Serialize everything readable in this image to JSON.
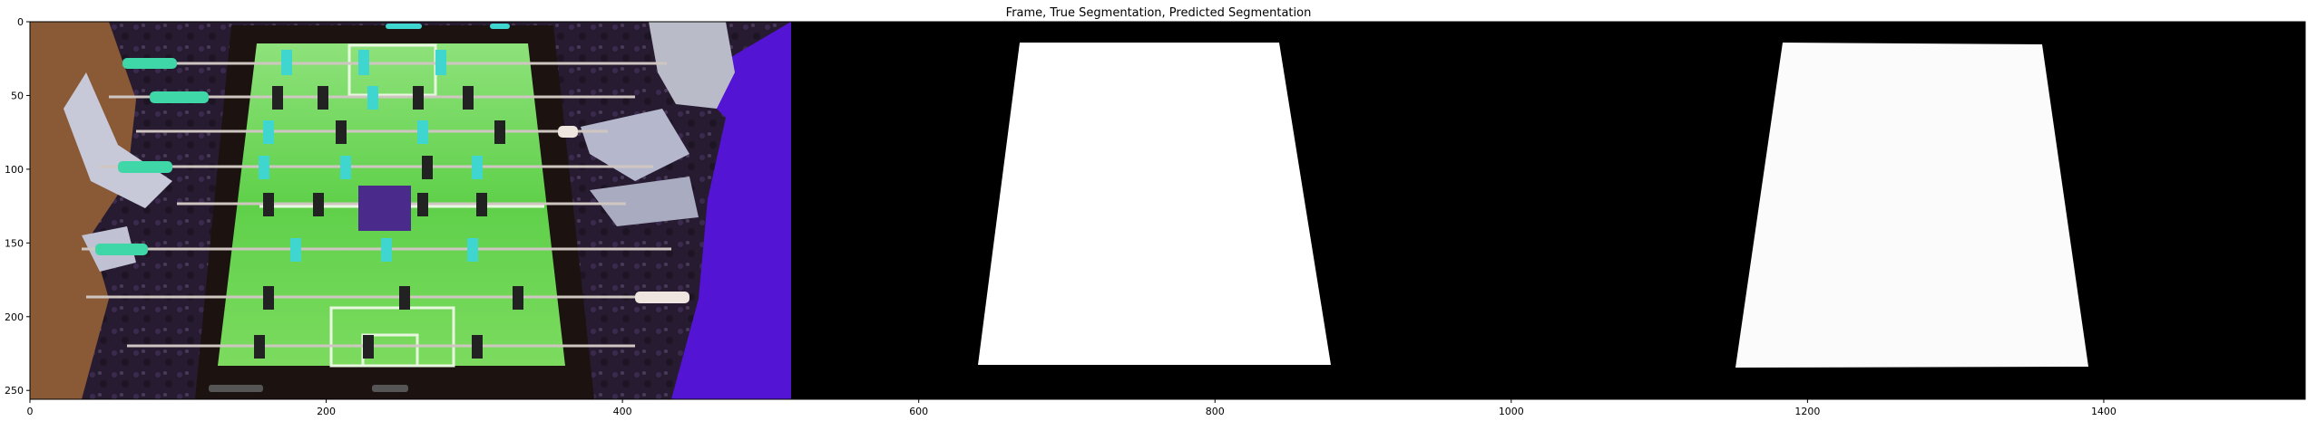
{
  "figure": {
    "title": "Frame, True Segmentation, Predicted Segmentation",
    "panels": [
      "Frame",
      "True Segmentation",
      "Predicted Segmentation"
    ]
  },
  "axes": {
    "x_ticks": [
      0,
      200,
      400,
      600,
      800,
      1000,
      1200,
      1400
    ],
    "y_ticks": [
      0,
      50,
      100,
      150,
      200,
      250
    ],
    "x_range": [
      0,
      1536
    ],
    "y_range": [
      256,
      0
    ]
  },
  "colors": {
    "background": "#000000",
    "mask": "#ffffff",
    "field": "#5fd04a",
    "field_dark": "#3e9a38",
    "table_frame": "#1c120f",
    "player_cyan": "#3fd6d0",
    "player_dark": "#222222",
    "carpet": "#2a1e3a",
    "shirt": "#5a14d8"
  }
}
